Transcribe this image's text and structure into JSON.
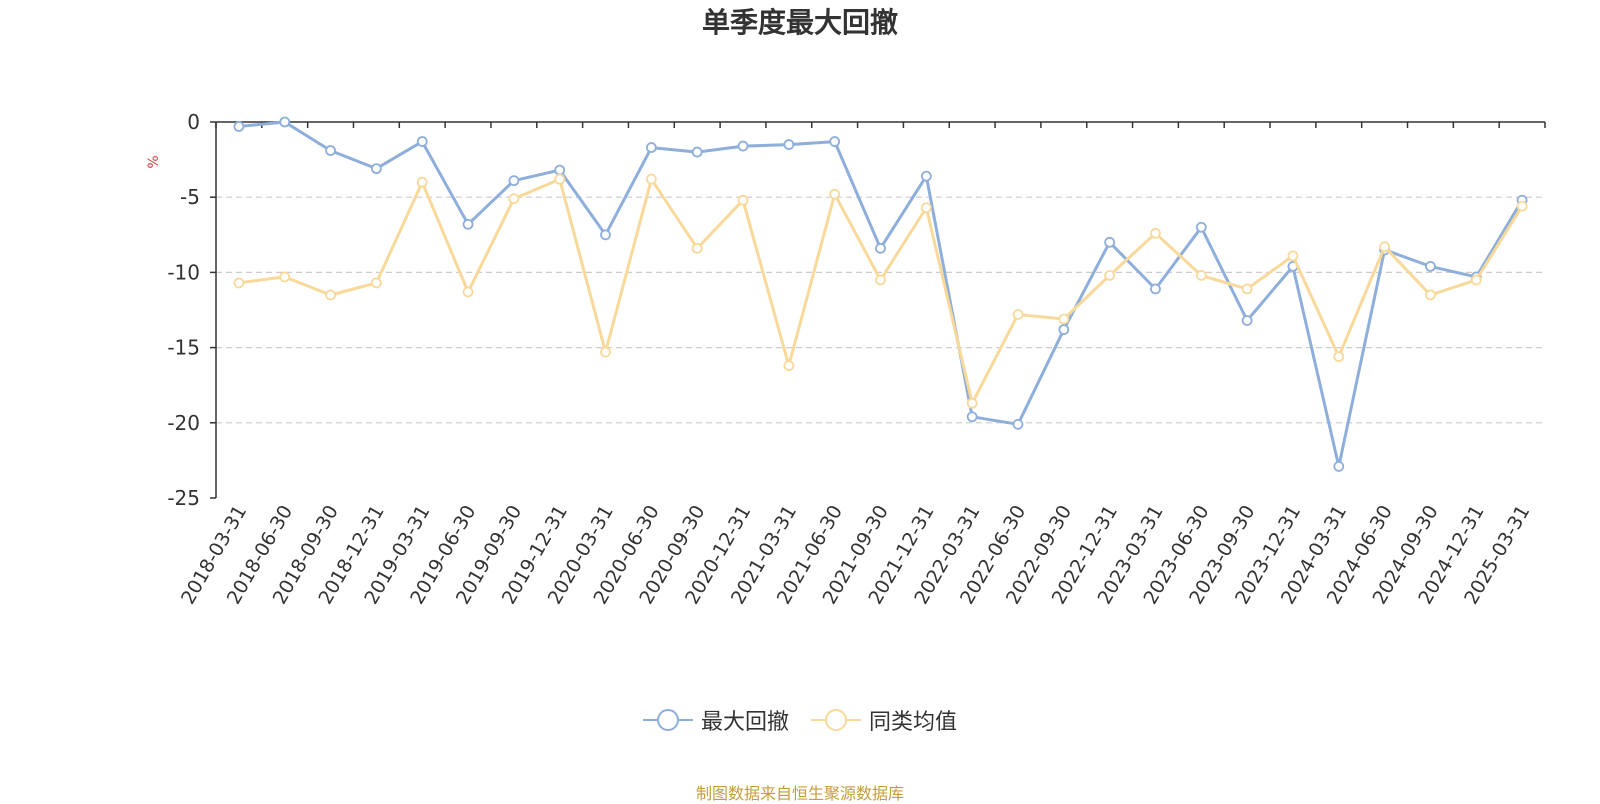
{
  "footer": {
    "source_text": "制图数据来自恒生聚源数据库"
  },
  "colors": {
    "series_1": "#8eaedb",
    "series_2": "#f8d99a",
    "source_text": "#c59d3a",
    "ylabel": "#e23a3a",
    "grid": "#cccccc"
  },
  "chart_data": {
    "type": "line",
    "title": "单季度最大回撤",
    "ylabel": "%",
    "xlabel": "",
    "ylim": [
      -25,
      0
    ],
    "yticks": [
      0,
      -5,
      -10,
      -15,
      -20,
      -25
    ],
    "grid": "horizontal dashed",
    "legend_position": "bottom-center",
    "categories": [
      "2018-03-31",
      "2018-06-30",
      "2018-09-30",
      "2018-12-31",
      "2019-03-31",
      "2019-06-30",
      "2019-09-30",
      "2019-12-31",
      "2020-03-31",
      "2020-06-30",
      "2020-09-30",
      "2020-12-31",
      "2021-03-31",
      "2021-06-30",
      "2021-09-30",
      "2021-12-31",
      "2022-03-31",
      "2022-06-30",
      "2022-09-30",
      "2022-12-31",
      "2023-03-31",
      "2023-06-30",
      "2023-09-30",
      "2023-12-31",
      "2024-03-31",
      "2024-06-30",
      "2024-09-30",
      "2024-12-31",
      "2025-03-31"
    ],
    "series": [
      {
        "name": "最大回撤",
        "values": [
          -0.3,
          0.0,
          -1.9,
          -3.1,
          -1.3,
          -6.8,
          -3.9,
          -3.2,
          -7.5,
          -1.7,
          -2.0,
          -1.6,
          -1.5,
          -1.3,
          -8.4,
          -3.6,
          -19.6,
          -20.1,
          -13.8,
          -8.0,
          -11.1,
          -7.0,
          -13.2,
          -9.6,
          -22.9,
          -8.5,
          -9.6,
          -10.3,
          -5.2
        ]
      },
      {
        "name": "同类均值",
        "values": [
          -10.7,
          -10.3,
          -11.5,
          -10.7,
          -4.0,
          -11.3,
          -5.1,
          -3.8,
          -15.3,
          -3.8,
          -8.4,
          -5.2,
          -16.2,
          -4.8,
          -10.5,
          -5.7,
          -18.7,
          -12.8,
          -13.1,
          -10.2,
          -7.4,
          -10.2,
          -11.1,
          -8.9,
          -15.6,
          -8.3,
          -11.5,
          -10.5,
          -5.6
        ]
      }
    ]
  }
}
